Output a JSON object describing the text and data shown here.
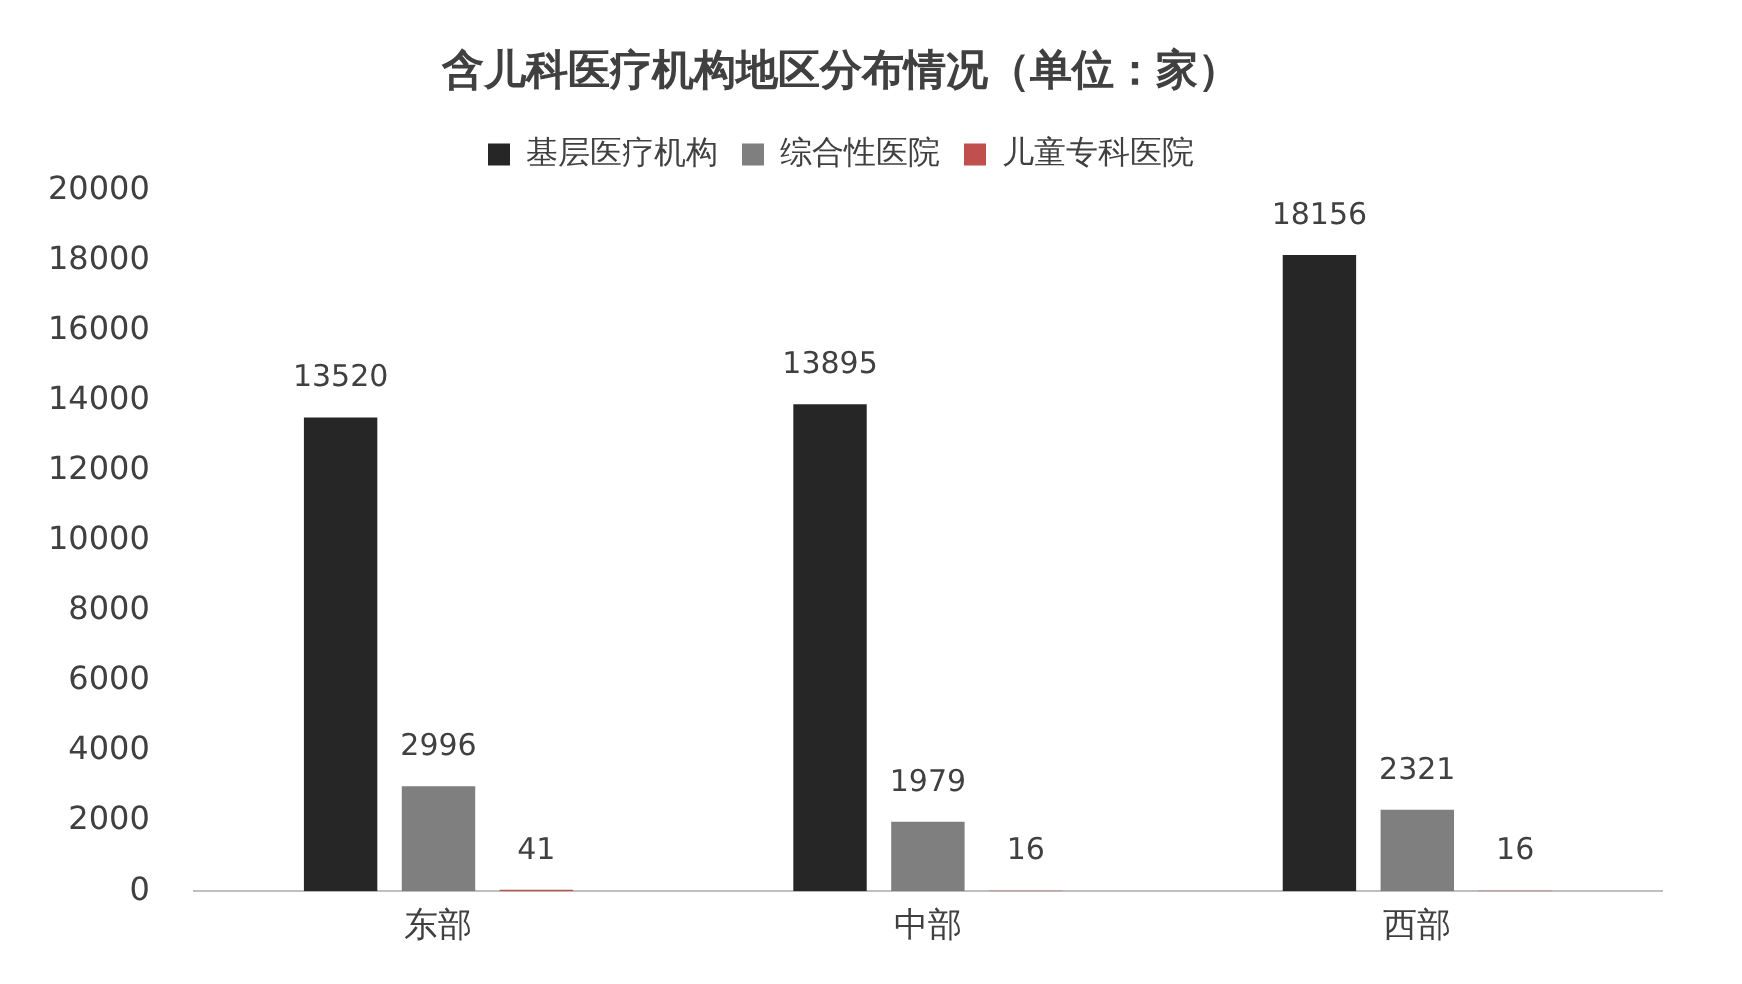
{
  "chart_data": {
    "type": "bar",
    "title": "含儿科医疗机构地区分布情况（单位：家）",
    "categories": [
      "东部",
      "中部",
      "西部"
    ],
    "series": [
      {
        "name": "基层医疗机构",
        "color": "#262626",
        "values": [
          13520,
          13895,
          18156
        ]
      },
      {
        "name": "综合性医院",
        "color": "#7f7f7f",
        "values": [
          2996,
          1979,
          2321
        ]
      },
      {
        "name": "儿童专科医院",
        "color": "#c0504d",
        "values": [
          41,
          16,
          16
        ]
      }
    ],
    "ylim": [
      0,
      20000
    ],
    "yticks": [
      0,
      2000,
      4000,
      6000,
      8000,
      10000,
      12000,
      14000,
      16000,
      18000,
      20000
    ],
    "grid": false,
    "legend": "top",
    "data_labels": true
  }
}
